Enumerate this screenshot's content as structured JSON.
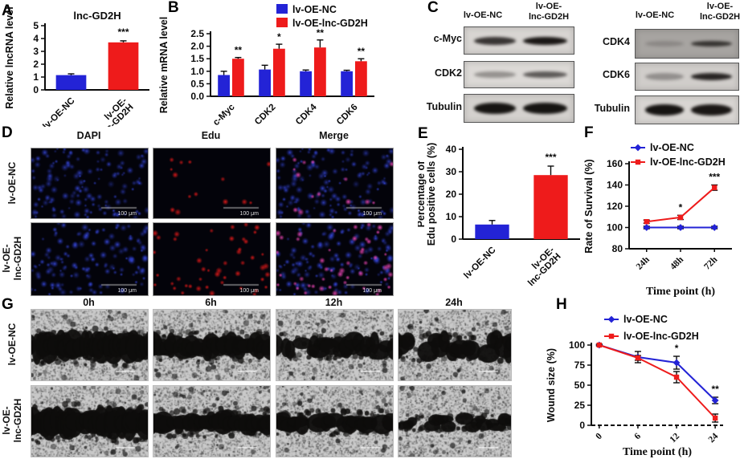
{
  "colors": {
    "blue": "#2323d6",
    "red": "#ee1b1b"
  },
  "panels": {
    "A": {
      "letter": "A"
    },
    "B": {
      "letter": "B"
    },
    "C": {
      "letter": "C",
      "groups": [
        {
          "col_headers": [
            [
              "lv-OE-NC"
            ],
            [
              "lv-OE-",
              "lnc-GD2H"
            ]
          ],
          "rows": [
            {
              "label": "c-Myc",
              "bg": "#d8d5d2",
              "band_h": 10,
              "bands": [
                0.8,
                0.95
              ]
            },
            {
              "label": "CDK2",
              "bg": "#dcd9d6",
              "band_h": 8,
              "bands": [
                0.35,
                0.62
              ]
            },
            {
              "label": "Tubulin",
              "bg": "#d4d1ce",
              "band_h": 14,
              "bands": [
                0.97,
                0.97
              ]
            }
          ]
        },
        {
          "col_headers": [
            [
              "lv-OE-NC"
            ],
            [
              "lv-OE-",
              "lnc-GD2H"
            ]
          ],
          "rows": [
            {
              "label": "CDK4",
              "bg": "#a7a4a1",
              "band_h": 7,
              "bands": [
                0.18,
                0.75
              ]
            },
            {
              "label": "CDK6",
              "bg": "#d0cdca",
              "band_h": 9,
              "bands": [
                0.32,
                0.88
              ]
            },
            {
              "label": "Tubulin",
              "bg": "#d8d5d2",
              "band_h": 14,
              "bands": [
                0.97,
                0.95
              ]
            }
          ]
        }
      ]
    },
    "D": {
      "letter": "D",
      "col_headers": [
        "DAPI",
        "Edu",
        "Merge"
      ],
      "row_labels": [
        [
          "lv-OE-NC"
        ],
        [
          "lv-OE-",
          "lnc-GD2H"
        ]
      ],
      "scale_bar": "100 μm",
      "rows": [
        {
          "edu_dots": 14
        },
        {
          "edu_dots": 48
        }
      ]
    },
    "E": {
      "letter": "E"
    },
    "F": {
      "letter": "F"
    },
    "G": {
      "letter": "G",
      "col_headers": [
        "0h",
        "6h",
        "12h",
        "24h"
      ],
      "row_labels": [
        [
          "lv-OE-NC"
        ],
        [
          "lv-OE-",
          "lnc-GD2H"
        ]
      ],
      "wound_thickness": [
        [
          0.4,
          0.32,
          0.28,
          0.3
        ],
        [
          0.42,
          0.3,
          0.26,
          0.16
        ]
      ],
      "wound_fragmentation": [
        [
          0.05,
          0.15,
          0.45,
          0.6
        ],
        [
          0.05,
          0.1,
          0.2,
          0.75
        ]
      ]
    },
    "H": {
      "letter": "H"
    }
  },
  "chart_data": [
    {
      "panel": "A",
      "type": "bar",
      "title": "lnc-GD2H",
      "ylabel": [
        "Relative lncRNA level"
      ],
      "ylim": [
        0,
        5
      ],
      "yticks": [
        0,
        1,
        2,
        3,
        4,
        5
      ],
      "categories": [
        [
          "lv-OE-NC"
        ],
        [
          "lv-OE-",
          "lnc-GD2H"
        ]
      ],
      "values": [
        1.15,
        3.7
      ],
      "errors": [
        0.1,
        0.12
      ],
      "bar_colors": [
        "blue",
        "red"
      ],
      "sig": [
        {
          "bar": 1,
          "text": "***"
        }
      ]
    },
    {
      "panel": "B",
      "type": "gbar",
      "ylabel": [
        "Relative mRNA level"
      ],
      "ylim": [
        0,
        2.5
      ],
      "yticks": [
        0,
        0.5,
        1,
        1.5,
        2,
        2.5
      ],
      "ytick_labels": [
        "0.0",
        "0.5",
        "1.0",
        "1.5",
        "2.0",
        "2.5"
      ],
      "categories": [
        [
          "c-Myc"
        ],
        [
          "CDK2"
        ],
        [
          "CDK4"
        ],
        [
          "CDK6"
        ]
      ],
      "series": [
        {
          "name": "lv-OE-NC",
          "color": "blue",
          "values": [
            0.85,
            1.07,
            1.0,
            1.0
          ],
          "errors": [
            0.15,
            0.17,
            0.05,
            0.04
          ]
        },
        {
          "name": "lv-OE-lnc-GD2H",
          "color": "red",
          "values": [
            1.5,
            1.9,
            1.95,
            1.4
          ],
          "errors": [
            0.05,
            0.18,
            0.3,
            0.1
          ]
        }
      ],
      "sig": [
        {
          "series": 1,
          "x": 0,
          "text": "**"
        },
        {
          "series": 1,
          "x": 1,
          "text": "*"
        },
        {
          "series": 1,
          "x": 2,
          "text": "**"
        },
        {
          "series": 1,
          "x": 3,
          "text": "**"
        }
      ],
      "legend": {
        "items": [
          {
            "label": "lv-OE-NC",
            "color": "blue"
          },
          {
            "label": "lv-OE-lnc-GD2H",
            "color": "red"
          }
        ]
      }
    },
    {
      "panel": "E",
      "type": "bar",
      "ylabel": [
        "Percentage of",
        "Edu positive cells (%)"
      ],
      "ylim": [
        0,
        40
      ],
      "yticks": [
        0,
        10,
        20,
        30,
        40
      ],
      "categories": [
        [
          "lv-OE-NC"
        ],
        [
          "lv-OE-",
          "lnc-GD2H"
        ]
      ],
      "values": [
        6.5,
        28.5
      ],
      "errors": [
        1.8,
        4
      ],
      "bar_colors": [
        "blue",
        "red"
      ],
      "sig": [
        {
          "bar": 1,
          "text": "***"
        }
      ]
    },
    {
      "panel": "F",
      "type": "line",
      "ylabel": [
        "Rate of Survival (%)"
      ],
      "xlabel": "Time point (h)",
      "ylim": [
        80,
        160
      ],
      "yticks": [
        80,
        100,
        120,
        140,
        160
      ],
      "categories": [
        "24h",
        "48h",
        "72h"
      ],
      "series": [
        {
          "name": "lv-OE-NC",
          "color": "blue",
          "marker": "diamond",
          "values": [
            100,
            100,
            100
          ],
          "errors": [
            1.2,
            1.2,
            1.2
          ]
        },
        {
          "name": "lv-OE-lnc-GD2H",
          "color": "red",
          "marker": "square",
          "values": [
            105.5,
            109.5,
            137.5
          ],
          "errors": [
            1.5,
            2,
            2.5
          ]
        }
      ],
      "sig": [
        {
          "series": 1,
          "x": 1,
          "text": "*"
        },
        {
          "series": 1,
          "x": 2,
          "text": "***"
        }
      ],
      "legend": {
        "items": [
          {
            "label": "lv-OE-NC",
            "color": "blue",
            "marker": "diamond"
          },
          {
            "label": "lv-OE-lnc-GD2H",
            "color": "red",
            "marker": "square"
          }
        ]
      }
    },
    {
      "panel": "H",
      "type": "line",
      "ylabel": [
        "Wound size (%)"
      ],
      "xlabel": "Time point (h)",
      "ylim": [
        0,
        100
      ],
      "yticks": [
        0,
        25,
        50,
        75,
        100
      ],
      "categories": [
        "0",
        "6",
        "12",
        "24"
      ],
      "x_dashed": true,
      "series": [
        {
          "name": "lv-OE-NC",
          "color": "blue",
          "marker": "diamond",
          "values": [
            100,
            85,
            78,
            31
          ],
          "errors": [
            1,
            7,
            8,
            4
          ]
        },
        {
          "name": "lv-OE-lnc-GD2H",
          "color": "red",
          "marker": "square",
          "values": [
            100,
            84,
            60,
            9
          ],
          "errors": [
            1,
            3,
            7,
            5
          ]
        }
      ],
      "sig": [
        {
          "series": 0,
          "x": 2,
          "text": "*"
        },
        {
          "series": 0,
          "x": 3,
          "text": "**"
        }
      ],
      "legend": {
        "items": [
          {
            "label": "lv-OE-NC",
            "color": "blue",
            "marker": "diamond"
          },
          {
            "label": "lv-OE-lnc-GD2H",
            "color": "red",
            "marker": "square"
          }
        ]
      }
    }
  ]
}
